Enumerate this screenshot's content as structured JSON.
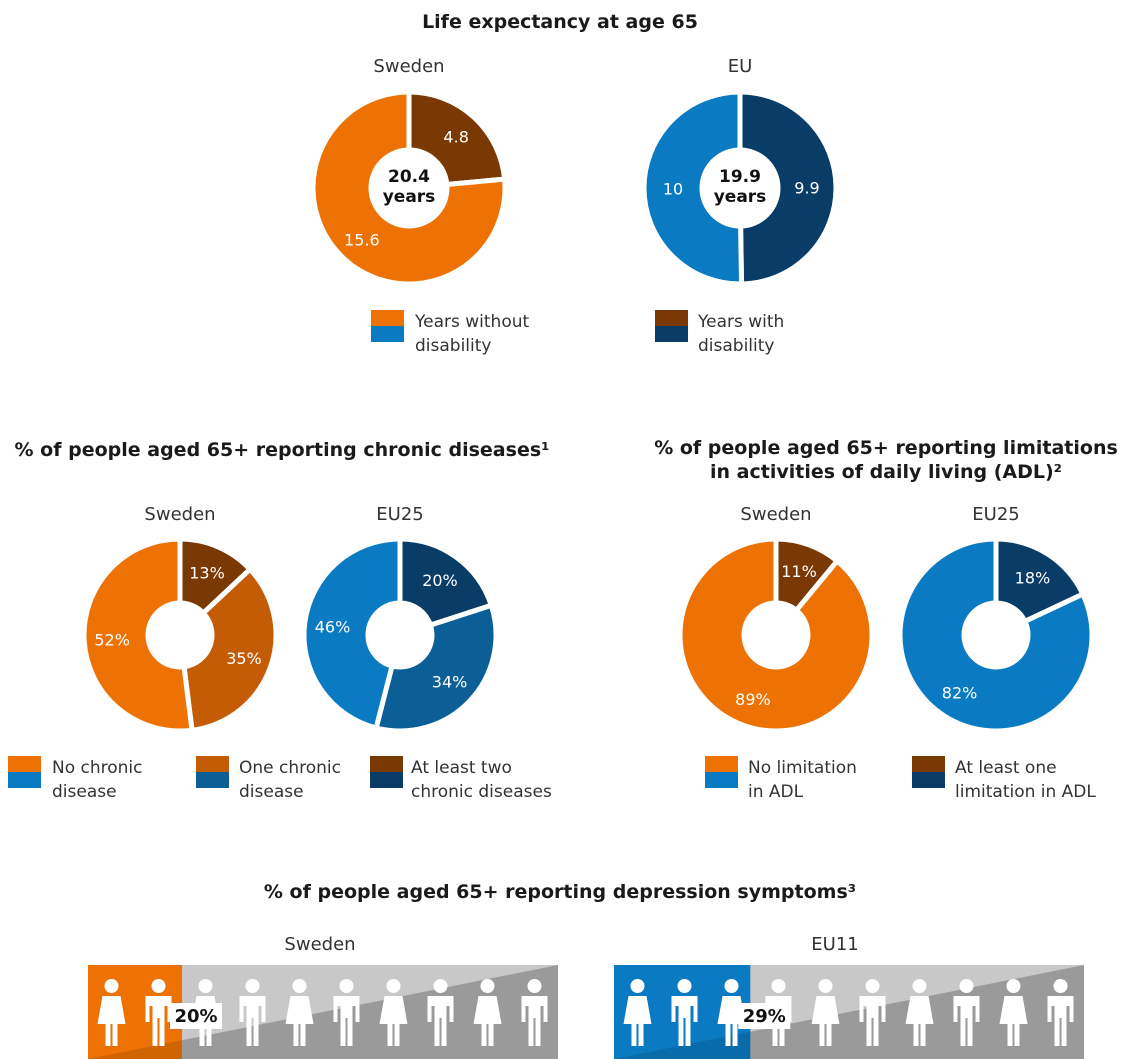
{
  "colors": {
    "sweden_without": "#ee7203",
    "sweden_one": "#c45c05",
    "sweden_with": "#7a3902",
    "eu_without": "#0a7bc2",
    "eu_one": "#0c5f96",
    "eu_with": "#093c66",
    "depression_bg_sweden": "#ee7203",
    "depression_bg_eu": "#0a7bc2",
    "figure_bg_light": "#c8c8c8",
    "figure_bg_dark": "#9a9a9a",
    "figure_fill": "#ffffff"
  },
  "legend_life": {
    "without": [
      "Years without",
      "disability"
    ],
    "with": [
      "Years with",
      "disability"
    ]
  },
  "legend_chronic": {
    "none": [
      "No chronic",
      "disease"
    ],
    "one": [
      "One chronic",
      "disease"
    ],
    "two": [
      "At least two",
      "chronic diseases"
    ]
  },
  "legend_adl": {
    "none": [
      "No limitation",
      "in ADL"
    ],
    "one": [
      "At least one",
      "limitation in ADL"
    ]
  },
  "chart_data": [
    {
      "type": "pie",
      "id": "life_expectancy",
      "title": "Life expectancy at age 65",
      "panels": [
        {
          "name": "Sweden",
          "center": [
            "20.4",
            "years"
          ],
          "slices": [
            {
              "label": "Years with disability",
              "value": 4.8,
              "text": "4.8",
              "color_key": "sweden_with"
            },
            {
              "label": "Years without disability",
              "value": 15.6,
              "text": "15.6",
              "color_key": "sweden_without"
            }
          ]
        },
        {
          "name": "EU",
          "center": [
            "19.9",
            "years"
          ],
          "slices": [
            {
              "label": "Years with disability",
              "value": 9.9,
              "text": "9.9",
              "color_key": "eu_with"
            },
            {
              "label": "Years without disability",
              "value": 10,
              "text": "10",
              "color_key": "eu_without"
            }
          ]
        }
      ]
    },
    {
      "type": "pie",
      "id": "chronic",
      "title": "% of people aged 65+ reporting chronic diseases¹",
      "panels": [
        {
          "name": "Sweden",
          "slices": [
            {
              "label": "At least two chronic diseases",
              "value": 13,
              "text": "13%",
              "color_key": "sweden_with"
            },
            {
              "label": "One chronic disease",
              "value": 35,
              "text": "35%",
              "color_key": "sweden_one"
            },
            {
              "label": "No chronic disease",
              "value": 52,
              "text": "52%",
              "color_key": "sweden_without"
            }
          ]
        },
        {
          "name": "EU25",
          "slices": [
            {
              "label": "At least two chronic diseases",
              "value": 20,
              "text": "20%",
              "color_key": "eu_with"
            },
            {
              "label": "One chronic disease",
              "value": 34,
              "text": "34%",
              "color_key": "eu_one"
            },
            {
              "label": "No chronic disease",
              "value": 46,
              "text": "46%",
              "color_key": "eu_without"
            }
          ]
        }
      ]
    },
    {
      "type": "pie",
      "id": "adl",
      "title_lines": [
        "% of people aged 65+ reporting limitations",
        "in activities of daily living (ADL)²"
      ],
      "panels": [
        {
          "name": "Sweden",
          "slices": [
            {
              "label": "At least one limitation in ADL",
              "value": 11,
              "text": "11%",
              "color_key": "sweden_with"
            },
            {
              "label": "No limitation in ADL",
              "value": 89,
              "text": "89%",
              "color_key": "sweden_without"
            }
          ]
        },
        {
          "name": "EU25",
          "slices": [
            {
              "label": "At least one limitation in ADL",
              "value": 18,
              "text": "18%",
              "color_key": "eu_with"
            },
            {
              "label": "No limitation in ADL",
              "value": 82,
              "text": "82%",
              "color_key": "eu_without"
            }
          ]
        }
      ]
    },
    {
      "type": "pictogram",
      "id": "depression",
      "title": "% of people aged 65+ reporting depression symptoms³",
      "figures_total": 10,
      "panels": [
        {
          "name": "Sweden",
          "value": 20,
          "text": "20%",
          "bg_key": "depression_bg_sweden"
        },
        {
          "name": "EU11",
          "value": 29,
          "text": "29%",
          "bg_key": "depression_bg_eu"
        }
      ]
    }
  ]
}
